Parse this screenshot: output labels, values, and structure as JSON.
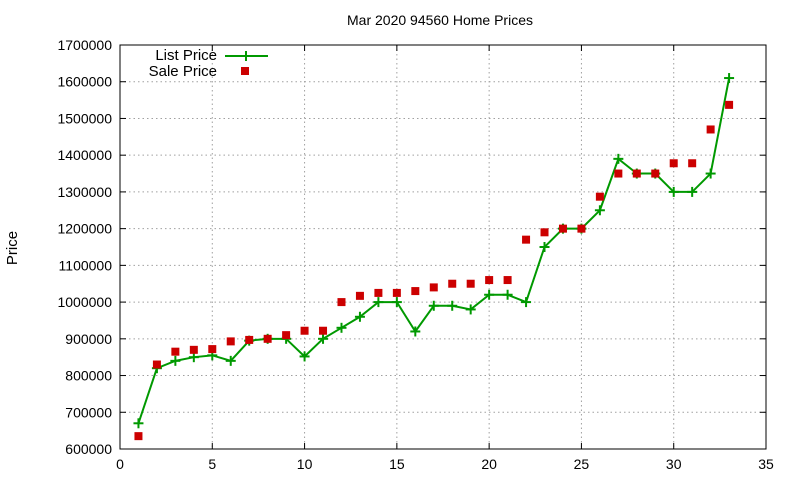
{
  "chart_data": {
    "type": "line",
    "title": "Mar 2020 94560 Home Prices",
    "xlabel": "",
    "ylabel": "Price",
    "xlim": [
      0,
      35
    ],
    "ylim": [
      600000,
      1700000
    ],
    "xticks": [
      0,
      5,
      10,
      15,
      20,
      25,
      30,
      35
    ],
    "yticks": [
      600000,
      700000,
      800000,
      900000,
      1000000,
      1100000,
      1200000,
      1300000,
      1400000,
      1500000,
      1600000,
      1700000
    ],
    "grid": true,
    "legend_position": "top-left",
    "series": [
      {
        "name": "List Price",
        "style": "line-plus",
        "color": "#009900",
        "x": [
          1,
          2,
          3,
          4,
          5,
          6,
          7,
          8,
          9,
          10,
          11,
          12,
          13,
          14,
          15,
          16,
          17,
          18,
          19,
          20,
          21,
          22,
          23,
          24,
          25,
          26,
          27,
          28,
          29,
          30,
          31,
          32,
          33
        ],
        "y": [
          670000,
          820000,
          840000,
          850000,
          855000,
          840000,
          895000,
          900000,
          900000,
          852000,
          900000,
          930000,
          960000,
          1000000,
          1000000,
          920000,
          990000,
          990000,
          980000,
          1020000,
          1020000,
          1000000,
          1150000,
          1200000,
          1200000,
          1250000,
          1390000,
          1350000,
          1350000,
          1300000,
          1300000,
          1350000,
          1610000
        ]
      },
      {
        "name": "Sale Price",
        "style": "square-markers",
        "color": "#cc0000",
        "x": [
          1,
          2,
          3,
          4,
          5,
          6,
          7,
          8,
          9,
          10,
          11,
          12,
          13,
          14,
          15,
          16,
          17,
          18,
          19,
          20,
          21,
          22,
          23,
          24,
          25,
          26,
          27,
          28,
          29,
          30,
          31,
          32,
          33
        ],
        "y": [
          635000,
          830000,
          865000,
          870000,
          872000,
          893000,
          897000,
          900000,
          910000,
          922000,
          922000,
          1000000,
          1017000,
          1025000,
          1025000,
          1030000,
          1040000,
          1050000,
          1050000,
          1060000,
          1060000,
          1170000,
          1190000,
          1200000,
          1200000,
          1287000,
          1350000,
          1350000,
          1350000,
          1378000,
          1378000,
          1470000,
          1537000
        ]
      }
    ]
  }
}
